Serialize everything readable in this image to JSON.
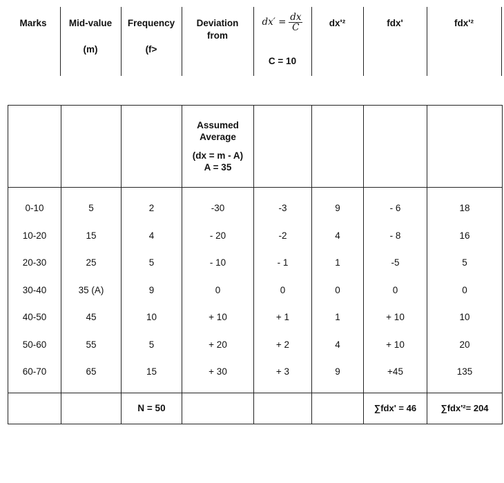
{
  "header": {
    "marks": "Marks",
    "mid_value": "Mid-value",
    "mid_value_sub": "(m)",
    "frequency": "Frequency",
    "frequency_sub": "(f>",
    "deviation": "Deviation",
    "deviation_sub": "from",
    "dx_prime_lhs": "dx′ =",
    "dx_prime_num": "dx",
    "dx_prime_den": "C",
    "c_value": "C = 10",
    "dx2": "dx'²",
    "fdx": "fdx'",
    "fdx2": "fdx'²"
  },
  "assumed": {
    "line1": "Assumed",
    "line2": "Average",
    "line3": "(dx = m - A)",
    "line4": "A = 35"
  },
  "rows": [
    [
      "0-10",
      "5",
      "2",
      "-30",
      "-3",
      "9",
      "- 6",
      "18"
    ],
    [
      "10-20",
      "15",
      "4",
      "- 20",
      "-2",
      "4",
      "- 8",
      "16"
    ],
    [
      "20-30",
      "25",
      "5",
      "- 10",
      "- 1",
      "1",
      "-5",
      "5"
    ],
    [
      "30-40",
      "35 (A)",
      "9",
      "0",
      "0",
      "0",
      "0",
      "0"
    ],
    [
      "40-50",
      "45",
      "10",
      "+ 10",
      "+ 1",
      "1",
      "+ 10",
      "10"
    ],
    [
      "50-60",
      "55",
      "5",
      "+ 20",
      "+ 2",
      "4",
      "+ 10",
      "20"
    ],
    [
      "60-70",
      "65",
      "15",
      "+ 30",
      "+ 3",
      "9",
      "+45",
      "135"
    ]
  ],
  "totals": {
    "n": "N = 50",
    "sum_fdx": "∑fdx' = 46",
    "sum_fdx2": "∑fdx'²= 204"
  }
}
